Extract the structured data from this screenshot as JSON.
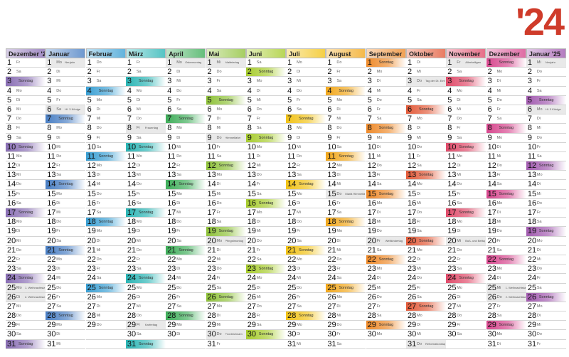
{
  "year_label": "'24",
  "weekday_abbr": [
    "So",
    "Mo",
    "Di",
    "Mi",
    "Do",
    "Fr",
    "Sa"
  ],
  "sunday_label": "Sonntag",
  "months": [
    {
      "name": "Dezember '23",
      "color": "#8a6fb5",
      "days": 31,
      "start": 5
    },
    {
      "name": "Januar",
      "color": "#4a7fc4",
      "days": 31,
      "start": 1
    },
    {
      "name": "Februar",
      "color": "#3ba0d4",
      "days": 29,
      "start": 4
    },
    {
      "name": "März",
      "color": "#2bb5b5",
      "days": 31,
      "start": 5
    },
    {
      "name": "April",
      "color": "#3fae5a",
      "days": 30,
      "start": 1
    },
    {
      "name": "Mai",
      "color": "#8fc23a",
      "days": 31,
      "start": 3
    },
    {
      "name": "Juni",
      "color": "#a7cc2e",
      "days": 30,
      "start": 6
    },
    {
      "name": "Juli",
      "color": "#f2c317",
      "days": 31,
      "start": 1
    },
    {
      "name": "August",
      "color": "#f2a81d",
      "days": 31,
      "start": 4
    },
    {
      "name": "September",
      "color": "#ee8a2a",
      "days": 30,
      "start": 0
    },
    {
      "name": "Oktober",
      "color": "#e35b3a",
      "days": 31,
      "start": 2
    },
    {
      "name": "November",
      "color": "#e04b6a",
      "days": 30,
      "start": 5
    },
    {
      "name": "Dezember",
      "color": "#d7478e",
      "days": 31,
      "start": 0
    },
    {
      "name": "Januar '25",
      "color": "#a25bb0",
      "days": 31,
      "start": 3
    }
  ],
  "holidays": [
    {
      "m": 1,
      "d": 1,
      "label": "Neujahr"
    },
    {
      "m": 1,
      "d": 6,
      "label": "Hl. 3 Könige"
    },
    {
      "m": 3,
      "d": 8,
      "label": "Frauentag"
    },
    {
      "m": 3,
      "d": 29,
      "label": "Karfreitag"
    },
    {
      "m": 4,
      "d": 1,
      "label": "Ostermontag"
    },
    {
      "m": 5,
      "d": 1,
      "label": "Maifeiertag"
    },
    {
      "m": 5,
      "d": 9,
      "label": "Himmelfahrt"
    },
    {
      "m": 5,
      "d": 20,
      "label": "Pfingstmontag"
    },
    {
      "m": 5,
      "d": 30,
      "label": "Fronleichnam"
    },
    {
      "m": 8,
      "d": 15,
      "label": "Mariä Himmelfahrt"
    },
    {
      "m": 9,
      "d": 20,
      "label": "Weltkindertag"
    },
    {
      "m": 10,
      "d": 3,
      "label": "Tag der Dt. Einheit"
    },
    {
      "m": 10,
      "d": 31,
      "label": "Reformationstag"
    },
    {
      "m": 11,
      "d": 1,
      "label": "Allerheiligen"
    },
    {
      "m": 11,
      "d": 20,
      "label": "Buß- und Bettag"
    },
    {
      "m": 12,
      "d": 25,
      "label": "1. Weihnachtstag"
    },
    {
      "m": 12,
      "d": 26,
      "label": "2. Weihnachtstag"
    },
    {
      "m": 0,
      "d": 25,
      "label": "1. Weihnachtstag"
    },
    {
      "m": 0,
      "d": 26,
      "label": "2. Weihnachtstag"
    },
    {
      "m": 13,
      "d": 1,
      "label": "Neujahr"
    },
    {
      "m": 13,
      "d": 6,
      "label": "Hl. 3 Könige"
    }
  ]
}
